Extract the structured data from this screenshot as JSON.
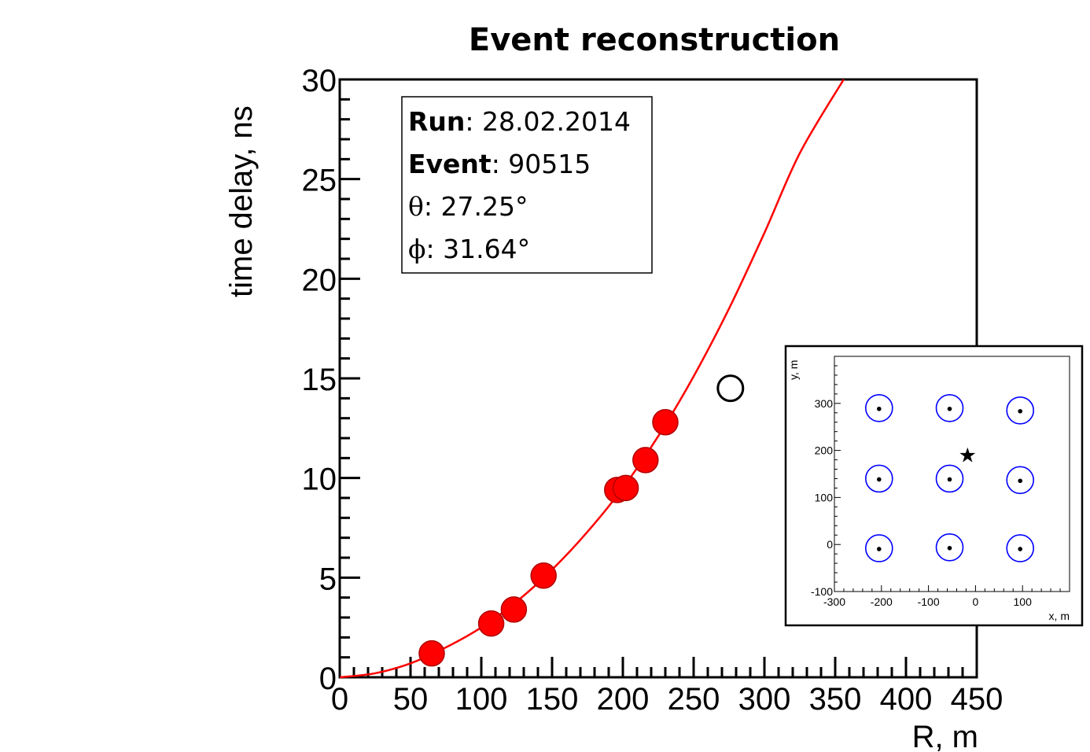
{
  "chart_data": [
    {
      "type": "scatter",
      "title": "Event reconstruction",
      "xlabel": "R, m",
      "ylabel": "time delay, ns",
      "xlim": [
        0,
        450
      ],
      "ylim": [
        0,
        30
      ],
      "x_ticks": [
        0,
        50,
        100,
        150,
        200,
        250,
        300,
        350,
        400,
        450
      ],
      "y_ticks": [
        0,
        5,
        10,
        15,
        20,
        25,
        30
      ],
      "grid": false,
      "series": [
        {
          "kind": "points",
          "color": "#ff0000",
          "filled": true,
          "points": [
            {
              "x": 65,
              "y": 1.2
            },
            {
              "x": 107,
              "y": 2.7
            },
            {
              "x": 123,
              "y": 3.4
            },
            {
              "x": 144,
              "y": 5.1
            },
            {
              "x": 196,
              "y": 9.4
            },
            {
              "x": 202,
              "y": 9.5
            },
            {
              "x": 216,
              "y": 10.9
            },
            {
              "x": 230,
              "y": 12.8
            }
          ]
        },
        {
          "kind": "points",
          "color": "#000000",
          "filled": false,
          "points": [
            {
              "x": 276,
              "y": 14.5
            }
          ]
        },
        {
          "kind": "curve",
          "color": "#ff0000",
          "points": [
            {
              "x": 0,
              "y": 0
            },
            {
              "x": 25,
              "y": 0.2
            },
            {
              "x": 50,
              "y": 0.7
            },
            {
              "x": 75,
              "y": 1.5
            },
            {
              "x": 100,
              "y": 2.5
            },
            {
              "x": 125,
              "y": 3.8
            },
            {
              "x": 150,
              "y": 5.4
            },
            {
              "x": 175,
              "y": 7.3
            },
            {
              "x": 200,
              "y": 9.5
            },
            {
              "x": 225,
              "y": 12.1
            },
            {
              "x": 250,
              "y": 15.1
            },
            {
              "x": 275,
              "y": 18.5
            },
            {
              "x": 300,
              "y": 22.3
            },
            {
              "x": 325,
              "y": 26.3
            },
            {
              "x": 356,
              "y": 30.0
            }
          ]
        }
      ],
      "info_box": {
        "run_label": "Run",
        "run_value": ": 28.02.2014",
        "event_label": "Event",
        "event_value": ": 90515",
        "theta_symbol": "θ",
        "theta_value": ": 27.25°",
        "phi_symbol": "ϕ",
        "phi_value": ": 31.64°"
      }
    },
    {
      "type": "scatter",
      "title": "",
      "xlabel": "x, m",
      "ylabel": "y, m",
      "xlim": [
        -300,
        200
      ],
      "ylim": [
        -100,
        400
      ],
      "x_ticks": [
        -300,
        -200,
        -100,
        0,
        100
      ],
      "y_ticks": [
        -100,
        0,
        100,
        200,
        300
      ],
      "detectors": [
        {
          "x": -205,
          "y": 290
        },
        {
          "x": -55,
          "y": 290
        },
        {
          "x": 95,
          "y": 285
        },
        {
          "x": -205,
          "y": 140
        },
        {
          "x": -55,
          "y": 140
        },
        {
          "x": 95,
          "y": 137
        },
        {
          "x": -205,
          "y": -8
        },
        {
          "x": -55,
          "y": -6
        },
        {
          "x": 95,
          "y": -8
        }
      ],
      "detector_color": "#0000ff",
      "core": {
        "x": -17,
        "y": 190,
        "symbol": "★"
      }
    }
  ]
}
